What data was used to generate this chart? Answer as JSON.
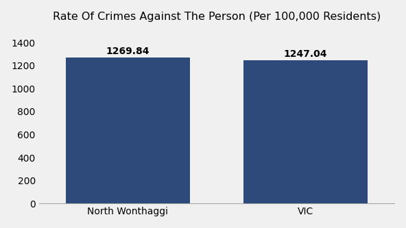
{
  "categories": [
    "North Wonthaggi",
    "VIC"
  ],
  "values": [
    1269.84,
    1247.04
  ],
  "bar_color": "#2d4a7a",
  "title": "Rate Of Crimes Against The Person (Per 100,000 Residents)",
  "title_fontsize": 11.5,
  "ylim": [
    0,
    1500
  ],
  "yticks": [
    0,
    200,
    400,
    600,
    800,
    1000,
    1200,
    1400
  ],
  "bar_width": 0.35,
  "tick_fontsize": 10,
  "background_color": "#f0f0f0",
  "value_label_fontsize": 10,
  "bar_positions": [
    0.25,
    0.75
  ],
  "xlim": [
    0,
    1
  ]
}
